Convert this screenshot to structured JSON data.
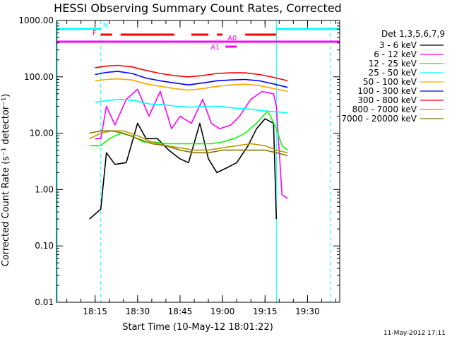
{
  "chart_data": {
    "type": "line",
    "title": "HESSI Observing Summary Count Rates, Corrected",
    "xlabel": "Start Time (10-May-12 18:01:22)",
    "ylabel": "Corrected Count Rate (s⁻¹ detector⁻¹)",
    "xscale": "time",
    "yscale": "log",
    "xlim": [
      "18:01:22",
      "19:41:22"
    ],
    "ylim": [
      0.01,
      1000
    ],
    "x_ticks": [
      "18:15",
      "18:30",
      "18:45",
      "19:00",
      "19:15",
      "19:30"
    ],
    "y_ticks": [
      "0.01",
      "0.10",
      "1.00",
      "10.00",
      "100.00",
      "1000.00"
    ],
    "legend_title": "Det 1,3,5,6,7,9",
    "legend_position": "right",
    "grid": false,
    "footer_date": "11-May-2012 17:11",
    "series": [
      {
        "name": "3 - 6 keV",
        "color": "#000000",
        "x": [
          "18:13",
          "18:17",
          "18:19",
          "18:22",
          "18:26",
          "18:30",
          "18:33",
          "18:37",
          "18:41",
          "18:45",
          "18:48",
          "18:52",
          "18:55",
          "18:58",
          "19:02",
          "19:05",
          "19:09",
          "19:12",
          "19:15",
          "19:18",
          "19:19"
        ],
        "y": [
          0.3,
          0.45,
          4.5,
          2.8,
          3.0,
          15,
          8,
          8,
          5,
          3.5,
          3.0,
          15,
          3.5,
          2.0,
          2.5,
          3.0,
          6,
          12,
          18,
          15,
          0.3
        ]
      },
      {
        "name": "6 - 12 keV",
        "color": "#ff00ff",
        "x": [
          "18:15",
          "18:17",
          "18:19",
          "18:22",
          "18:26",
          "18:30",
          "18:34",
          "18:38",
          "18:42",
          "18:45",
          "18:49",
          "18:53",
          "18:56",
          "18:59",
          "19:03",
          "19:06",
          "19:10",
          "19:14",
          "19:18",
          "19:19",
          "19:21",
          "19:23"
        ],
        "y": [
          8,
          8,
          30,
          14,
          40,
          60,
          20,
          55,
          12,
          20,
          15,
          40,
          15,
          12,
          14,
          20,
          40,
          55,
          50,
          30,
          0.8,
          0.7
        ]
      },
      {
        "name": "12 - 25 keV",
        "color": "#00ff00",
        "x": [
          "18:13",
          "18:17",
          "18:20",
          "18:24",
          "18:28",
          "18:32",
          "18:36",
          "18:40",
          "18:44",
          "18:48",
          "18:52",
          "18:56",
          "19:00",
          "19:04",
          "19:08",
          "19:12",
          "19:16",
          "19:19",
          "19:21",
          "19:23"
        ],
        "y": [
          6,
          6,
          8,
          10,
          9,
          7,
          7,
          6.5,
          6.5,
          6.5,
          6.5,
          6.5,
          7,
          8,
          10,
          15,
          25,
          12,
          6,
          5
        ]
      },
      {
        "name": "25 - 50 keV",
        "color": "#00ffff",
        "x": [
          "18:15",
          "18:19",
          "18:24",
          "18:29",
          "18:34",
          "18:39",
          "18:44",
          "18:49",
          "18:54",
          "18:59",
          "19:04",
          "19:09",
          "19:14",
          "19:19",
          "19:23"
        ],
        "y": [
          35,
          38,
          40,
          38,
          33,
          32,
          30,
          29,
          30,
          30,
          28,
          27,
          25,
          24,
          23
        ]
      },
      {
        "name": "50 - 100 keV",
        "color": "#ffa500",
        "x": [
          "18:15",
          "18:19",
          "18:23",
          "18:28",
          "18:33",
          "18:38",
          "18:43",
          "18:48",
          "18:53",
          "18:58",
          "19:03",
          "19:08",
          "19:13",
          "19:18",
          "19:23"
        ],
        "y": [
          85,
          90,
          92,
          88,
          75,
          68,
          62,
          58,
          62,
          68,
          72,
          74,
          70,
          62,
          55
        ]
      },
      {
        "name": "100 - 300 keV",
        "color": "#0000ff",
        "x": [
          "18:15",
          "18:19",
          "18:23",
          "18:28",
          "18:33",
          "18:38",
          "18:43",
          "18:48",
          "18:53",
          "18:58",
          "19:03",
          "19:08",
          "19:13",
          "19:18",
          "19:23"
        ],
        "y": [
          110,
          120,
          125,
          115,
          95,
          85,
          78,
          72,
          78,
          85,
          88,
          90,
          85,
          75,
          65
        ]
      },
      {
        "name": "300 - 800 keV",
        "color": "#ff0000",
        "x": [
          "18:15",
          "18:19",
          "18:23",
          "18:28",
          "18:33",
          "18:38",
          "18:43",
          "18:48",
          "18:53",
          "18:58",
          "19:03",
          "19:08",
          "19:13",
          "19:18",
          "19:23"
        ],
        "y": [
          145,
          155,
          160,
          150,
          130,
          115,
          105,
          100,
          105,
          115,
          118,
          118,
          110,
          98,
          85
        ]
      },
      {
        "name": "800 - 7000 keV",
        "color": "#b59a00",
        "x": [
          "18:13",
          "18:17",
          "18:21",
          "18:25",
          "18:30",
          "18:35",
          "18:40",
          "18:45",
          "18:50",
          "18:55",
          "19:00",
          "19:05",
          "19:10",
          "19:15",
          "19:19",
          "19:23"
        ],
        "y": [
          8,
          10,
          11,
          11,
          9,
          7,
          6,
          5.5,
          5,
          5,
          5.5,
          6,
          6.5,
          6,
          5,
          4.5
        ]
      },
      {
        "name": "7000 - 20000 keV",
        "color": "#8b7500",
        "x": [
          "18:13",
          "18:17",
          "18:21",
          "18:25",
          "18:30",
          "18:35",
          "18:40",
          "18:45",
          "18:50",
          "18:55",
          "19:00",
          "19:05",
          "19:10",
          "19:15",
          "19:19",
          "19:23"
        ],
        "y": [
          10,
          11,
          11,
          10,
          8,
          6.5,
          6,
          5,
          4.5,
          4.5,
          5,
          5,
          5,
          5,
          4.5,
          4
        ]
      }
    ],
    "flag_bars": [
      {
        "label": "N",
        "color": "#00ffff",
        "segments": [
          [
            "18:01:22",
            "18:17"
          ],
          [
            "19:19",
            "19:41:22"
          ]
        ]
      },
      {
        "label": "F",
        "color": "#ff0000",
        "segments": [
          [
            "18:17",
            "18:21"
          ],
          [
            "18:24",
            "18:43"
          ],
          [
            "18:49",
            "18:55"
          ],
          [
            "18:58",
            "19:00"
          ],
          [
            "19:08",
            "19:19"
          ]
        ]
      },
      {
        "label": "A0",
        "color": "#ff00ff",
        "segments": [
          [
            "18:01:22",
            "19:41:22"
          ]
        ]
      },
      {
        "label": "A1",
        "color": "#ff00ff",
        "segments": [
          [
            "19:01",
            "19:05"
          ]
        ]
      }
    ],
    "vertical_lines": [
      {
        "x": "18:17",
        "color": "#00ffff",
        "style": "dashed"
      },
      {
        "x": "19:19",
        "color": "#00ffff",
        "style": "solid"
      },
      {
        "x": "19:38",
        "color": "#00ffff",
        "style": "dashed"
      }
    ]
  }
}
